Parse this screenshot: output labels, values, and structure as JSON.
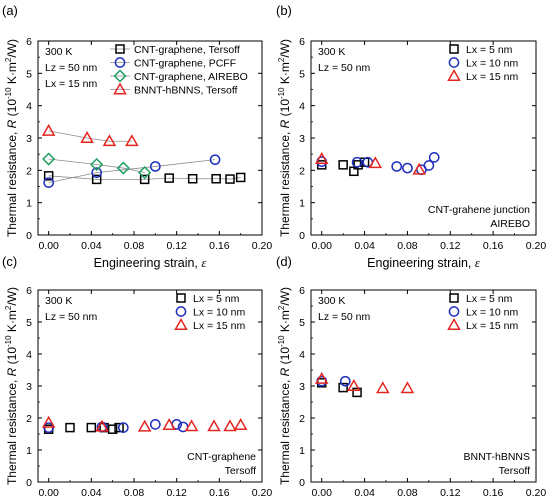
{
  "colors": {
    "black": "#000000",
    "blue": "#1f2fbf",
    "green": "#1e9e5e",
    "red": "#e52620",
    "gray_line": "#8c8c8c"
  },
  "chart_data": [
    {
      "panel_label": "(a)",
      "type": "scatter",
      "xlabel": "Engineering strain, ε",
      "ylabel": "Thermal resistance, R (10⁻¹⁰ K·m²/W)",
      "xlim": [
        -0.01,
        0.2
      ],
      "ylim": [
        0,
        6
      ],
      "xticks": [
        "0.00",
        "0.04",
        "0.08",
        "0.12",
        "0.16",
        "0.20"
      ],
      "yticks": [
        "0",
        "1",
        "2",
        "3",
        "4",
        "5",
        "6"
      ],
      "annotations": [
        "300 K",
        "Lz = 50 nm",
        "Lx = 15 nm"
      ],
      "legend_position": "top-right",
      "series": [
        {
          "name": "CNT-graphene, Tersoff",
          "marker": "square",
          "color": "black",
          "connected": true,
          "x": [
            0.0,
            0.045,
            0.09,
            0.113,
            0.135,
            0.157,
            0.17,
            0.18
          ],
          "y": [
            1.83,
            1.72,
            1.72,
            1.76,
            1.74,
            1.74,
            1.73,
            1.78
          ]
        },
        {
          "name": "CNT-graphene, PCFF",
          "marker": "circle",
          "color": "blue",
          "connected": true,
          "x": [
            0.0,
            0.045,
            0.1,
            0.156
          ],
          "y": [
            1.62,
            1.93,
            2.12,
            2.33
          ]
        },
        {
          "name": "CNT-graphene, AIREBO",
          "marker": "diamond",
          "color": "green",
          "connected": true,
          "x": [
            0.0,
            0.045,
            0.07,
            0.09
          ],
          "y": [
            2.35,
            2.18,
            2.07,
            1.93
          ]
        },
        {
          "name": "BNNT-hBNNS, Tersoff",
          "marker": "triangle",
          "color": "red",
          "connected": true,
          "x": [
            0.0,
            0.036,
            0.057,
            0.078
          ],
          "y": [
            3.22,
            3.0,
            2.9,
            2.9
          ]
        }
      ]
    },
    {
      "panel_label": "(b)",
      "type": "scatter",
      "xlabel": "Engineering strain, ε",
      "ylabel": "Thermal resistance, R (10⁻¹⁰ K·m²/W)",
      "xlim": [
        -0.01,
        0.2
      ],
      "ylim": [
        0,
        6
      ],
      "xticks": [
        "0.00",
        "0.04",
        "0.08",
        "0.12",
        "0.16",
        "0.20"
      ],
      "yticks": [
        "0",
        "1",
        "2",
        "3",
        "4",
        "5",
        "6"
      ],
      "annotations": [
        "300 K",
        "Lz = 50 nm"
      ],
      "corner_text": [
        "CNT-grahene junction",
        "AIREBO"
      ],
      "legend_position": "top-right",
      "series": [
        {
          "name": "Lx = 5 nm",
          "marker": "square",
          "color": "black",
          "connected": false,
          "x": [
            0.0,
            0.02,
            0.03,
            0.034,
            0.04
          ],
          "y": [
            2.17,
            2.17,
            1.97,
            2.17,
            2.25
          ]
        },
        {
          "name": "Lx = 10 nm",
          "marker": "circle",
          "color": "blue",
          "connected": false,
          "x": [
            0.0,
            0.033,
            0.043,
            0.07,
            0.08,
            0.093,
            0.1,
            0.105
          ],
          "y": [
            2.27,
            2.25,
            2.25,
            2.12,
            2.07,
            2.02,
            2.15,
            2.4
          ]
        },
        {
          "name": "Lx = 15 nm",
          "marker": "triangle",
          "color": "red",
          "connected": false,
          "x": [
            0.0,
            0.05,
            0.091
          ],
          "y": [
            2.35,
            2.22,
            2.02
          ]
        }
      ]
    },
    {
      "panel_label": "(c)",
      "type": "scatter",
      "xlabel": "Engineering strain, ε",
      "ylabel": "Thermal resistance, R (10⁻¹⁰ K·m²/W)",
      "xlim": [
        -0.01,
        0.2
      ],
      "ylim": [
        0,
        6
      ],
      "xticks": [
        "0.00",
        "0.04",
        "0.08",
        "0.12",
        "0.16",
        "0.20"
      ],
      "yticks": [
        "0",
        "1",
        "2",
        "3",
        "4",
        "5",
        "6"
      ],
      "annotations": [
        "300 K",
        "Lz = 50 nm"
      ],
      "corner_text": [
        "CNT-graphene",
        "Tersoff"
      ],
      "legend_position": "top-right",
      "series": [
        {
          "name": "Lx = 5 nm",
          "marker": "square",
          "color": "black",
          "connected": false,
          "x": [
            0.0,
            0.02,
            0.04,
            0.052,
            0.06,
            0.066
          ],
          "y": [
            1.65,
            1.7,
            1.7,
            1.7,
            1.65,
            1.7
          ]
        },
        {
          "name": "Lx = 10 nm",
          "marker": "circle",
          "color": "blue",
          "connected": false,
          "x": [
            0.0,
            0.05,
            0.07,
            0.1,
            0.12,
            0.126
          ],
          "y": [
            1.7,
            1.72,
            1.7,
            1.8,
            1.8,
            1.72
          ]
        },
        {
          "name": "Lx = 15 nm",
          "marker": "triangle",
          "color": "red",
          "connected": false,
          "x": [
            0.0,
            0.05,
            0.09,
            0.113,
            0.134,
            0.155,
            0.17,
            0.18
          ],
          "y": [
            1.85,
            1.73,
            1.73,
            1.78,
            1.74,
            1.74,
            1.74,
            1.78
          ]
        }
      ]
    },
    {
      "panel_label": "(d)",
      "type": "scatter",
      "xlabel": "Engineering strain, ε",
      "ylabel": "Thermal resistance, R (10⁻¹⁰ K·m²/W)",
      "xlim": [
        -0.01,
        0.2
      ],
      "ylim": [
        0,
        6
      ],
      "xticks": [
        "0.00",
        "0.04",
        "0.08",
        "0.12",
        "0.16",
        "0.20"
      ],
      "yticks": [
        "0",
        "1",
        "2",
        "3",
        "4",
        "5",
        "6"
      ],
      "annotations": [
        "300 K",
        "Lz = 50 nm"
      ],
      "corner_text": [
        "BNNT-hBNNS",
        "Tersoff"
      ],
      "legend_position": "top-right",
      "series": [
        {
          "name": "Lx = 5 nm",
          "marker": "square",
          "color": "black",
          "connected": false,
          "x": [
            0.0,
            0.02,
            0.033
          ],
          "y": [
            3.1,
            2.95,
            2.8
          ]
        },
        {
          "name": "Lx = 10 nm",
          "marker": "circle",
          "color": "blue",
          "connected": false,
          "x": [
            0.0,
            0.022
          ],
          "y": [
            3.15,
            3.15
          ]
        },
        {
          "name": "Lx = 15 nm",
          "marker": "triangle",
          "color": "red",
          "connected": false,
          "x": [
            0.0,
            0.03,
            0.057,
            0.08
          ],
          "y": [
            3.22,
            3.0,
            2.93,
            2.93
          ]
        }
      ]
    }
  ]
}
